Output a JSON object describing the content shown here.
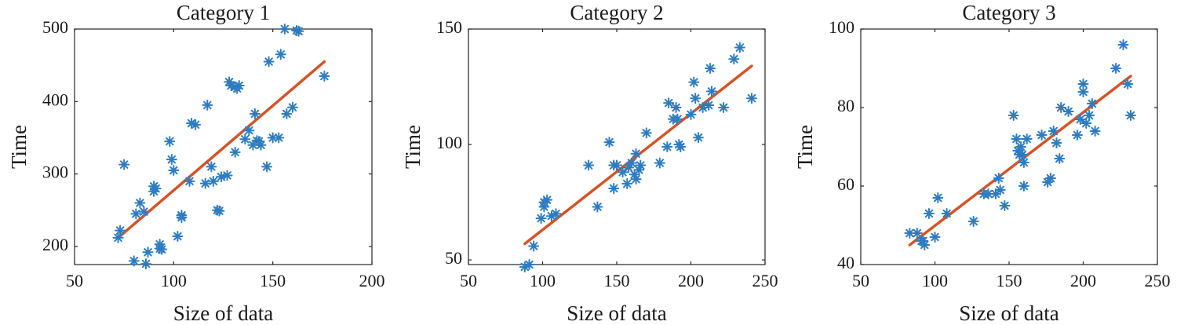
{
  "colors": {
    "points": "#2e7cbf",
    "fit_line": "#d35427",
    "axes": "#262626"
  },
  "chart_data": [
    {
      "type": "scatter",
      "title": "Category 1",
      "xlabel": "Size of data",
      "ylabel": "Time",
      "xlim": [
        50,
        200
      ],
      "ylim": [
        175,
        500
      ],
      "xticks": [
        50,
        100,
        150,
        200
      ],
      "yticks": [
        200,
        300,
        400,
        500
      ],
      "marker": "asterisk",
      "grid": false,
      "series": [
        {
          "x": [
            72,
            73,
            75,
            80,
            81,
            83,
            85,
            86,
            87,
            90,
            90,
            91,
            93,
            93,
            94,
            98,
            99,
            100,
            102,
            104,
            104,
            108,
            109,
            111,
            116,
            117,
            119,
            120,
            122,
            123,
            124,
            127,
            128,
            129,
            131,
            131,
            132,
            133,
            136,
            138,
            140,
            141,
            142,
            143,
            144,
            147,
            148,
            150,
            153,
            154,
            156,
            157,
            160,
            162,
            163,
            176
          ],
          "y": [
            212,
            222,
            313,
            180,
            245,
            260,
            248,
            176,
            192,
            276,
            283,
            280,
            197,
            203,
            196,
            345,
            320,
            305,
            214,
            240,
            243,
            290,
            370,
            368,
            287,
            395,
            310,
            290,
            250,
            249,
            296,
            298,
            427,
            422,
            420,
            330,
            418,
            422,
            348,
            360,
            340,
            383,
            346,
            345,
            340,
            310,
            455,
            350,
            350,
            465,
            500,
            383,
            392,
            498,
            497,
            435
          ]
        }
      ],
      "fit_line": {
        "x": [
          72,
          176
        ],
        "y": [
          212,
          455
        ]
      }
    },
    {
      "type": "scatter",
      "title": "Category 2",
      "xlabel": "Size of data",
      "ylabel": "Time",
      "xlim": [
        50,
        250
      ],
      "ylim": [
        48,
        150
      ],
      "xticks": [
        50,
        100,
        150,
        200,
        250
      ],
      "yticks": [
        50,
        100,
        150
      ],
      "marker": "asterisk",
      "grid": false,
      "series": [
        {
          "x": [
            88,
            91,
            94,
            99,
            101,
            101,
            103,
            106,
            109,
            131,
            137,
            145,
            148,
            148,
            150,
            154,
            157,
            158,
            160,
            162,
            163,
            163,
            165,
            166,
            170,
            179,
            184,
            185,
            188,
            190,
            191,
            192,
            193,
            200,
            202,
            203,
            205,
            208,
            212,
            213,
            214,
            222,
            229,
            233,
            241
          ],
          "y": [
            47,
            48,
            56,
            68,
            73,
            75,
            76,
            69,
            70,
            91,
            73,
            101,
            91,
            81,
            91,
            88,
            83,
            90,
            92,
            87,
            96,
            85,
            89,
            91,
            105,
            92,
            99,
            118,
            111,
            116,
            111,
            100,
            99,
            113,
            127,
            120,
            103,
            116,
            117,
            133,
            123,
            116,
            137,
            142,
            120
          ]
        }
      ],
      "fit_line": {
        "x": [
          88,
          241
        ],
        "y": [
          57,
          134
        ]
      }
    },
    {
      "type": "scatter",
      "title": "Category 3",
      "xlabel": "Size of data",
      "ylabel": "Time",
      "xlim": [
        50,
        250
      ],
      "ylim": [
        40,
        100
      ],
      "xticks": [
        50,
        100,
        150,
        200,
        250
      ],
      "yticks": [
        40,
        60,
        80,
        100
      ],
      "marker": "asterisk",
      "grid": false,
      "series": [
        {
          "x": [
            83,
            88,
            91,
            92,
            93,
            96,
            100,
            102,
            108,
            126,
            133,
            136,
            141,
            143,
            144,
            147,
            153,
            155,
            156,
            157,
            158,
            159,
            160,
            160,
            162,
            172,
            176,
            178,
            180,
            182,
            184,
            185,
            190,
            196,
            198,
            200,
            200,
            202,
            204,
            206,
            208,
            222,
            227,
            230,
            232
          ],
          "y": [
            48,
            48,
            46,
            46,
            45,
            53,
            47,
            57,
            53,
            51,
            58,
            58,
            58,
            62,
            59,
            55,
            78,
            72,
            69,
            68,
            70,
            68,
            66,
            60,
            72,
            73,
            61,
            62,
            74,
            71,
            67,
            80,
            79,
            73,
            77,
            84,
            86,
            76,
            78,
            81,
            74,
            90,
            96,
            86,
            78
          ]
        }
      ],
      "fit_line": {
        "x": [
          83,
          232
        ],
        "y": [
          45,
          88
        ]
      }
    }
  ]
}
